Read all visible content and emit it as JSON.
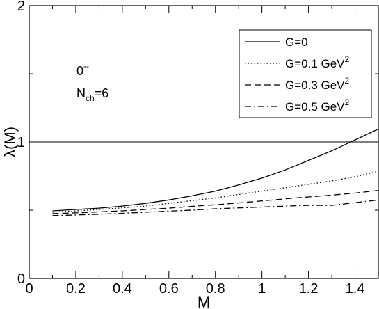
{
  "chart_data": {
    "type": "line",
    "xlabel": "M",
    "ylabel": "λ(M)",
    "xlim": [
      0,
      1.5
    ],
    "ylim": [
      0,
      2
    ],
    "x_ticks": [
      0,
      0.2,
      0.4,
      0.6,
      0.8,
      1,
      1.2,
      1.4
    ],
    "x_tick_labels": [
      "0",
      "0.2",
      "0.4",
      "0.6",
      "0.8",
      "1",
      "1.2",
      "1.4"
    ],
    "y_ticks": [
      0,
      1,
      2
    ],
    "y_tick_labels": [
      "0",
      "1",
      "2"
    ],
    "reference_line_y": 1,
    "annotation": {
      "quantum_numbers": "0",
      "quantum_numbers_sup": "--",
      "nch_main": "N",
      "nch_sub": "ch",
      "nch_value": "=6"
    },
    "legend": {
      "placement": "top-right",
      "entries": [
        {
          "label": "G=0",
          "sup": "",
          "dash": "solid"
        },
        {
          "label": "G=0.1 GeV",
          "sup": "2",
          "dash": "dotted"
        },
        {
          "label": "G=0.3 GeV",
          "sup": "2",
          "dash": "dashed"
        },
        {
          "label": "G=0.5 GeV",
          "sup": "2",
          "dash": "dashdot"
        }
      ]
    },
    "x": [
      0.1,
      0.2,
      0.3,
      0.4,
      0.5,
      0.6,
      0.7,
      0.8,
      0.9,
      1.0,
      1.1,
      1.2,
      1.3,
      1.4,
      1.5
    ],
    "series": [
      {
        "name": "G=0",
        "values": [
          0.495,
          0.505,
          0.515,
          0.53,
          0.55,
          0.575,
          0.605,
          0.64,
          0.685,
          0.735,
          0.795,
          0.865,
          0.935,
          1.015,
          1.095
        ]
      },
      {
        "name": "G=0.1 GeV2",
        "values": [
          0.485,
          0.495,
          0.505,
          0.517,
          0.53,
          0.55,
          0.57,
          0.59,
          0.615,
          0.64,
          0.665,
          0.69,
          0.715,
          0.745,
          0.785
        ]
      },
      {
        "name": "G=0.3 GeV2",
        "values": [
          0.475,
          0.48,
          0.487,
          0.495,
          0.505,
          0.515,
          0.528,
          0.54,
          0.553,
          0.568,
          0.583,
          0.597,
          0.61,
          0.625,
          0.645
        ]
      },
      {
        "name": "G=0.5 GeV2",
        "values": [
          0.46,
          0.465,
          0.47,
          0.477,
          0.485,
          0.493,
          0.5,
          0.51,
          0.517,
          0.523,
          0.53,
          0.535,
          0.535,
          0.555,
          0.575
        ]
      }
    ]
  }
}
